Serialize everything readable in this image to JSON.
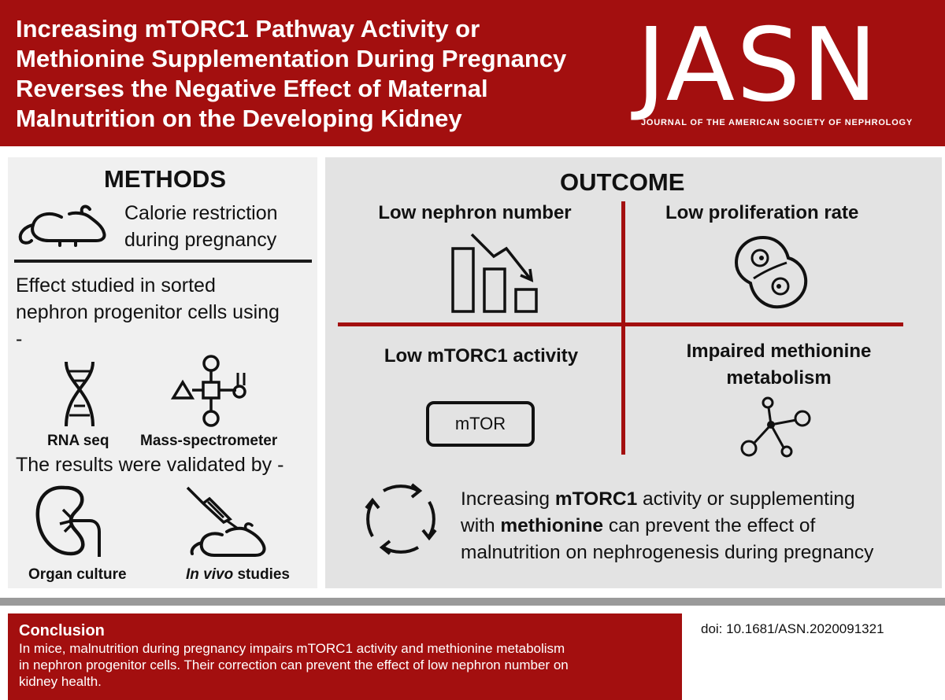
{
  "header": {
    "title_lines": [
      "Increasing mTORC1 Pathway Activity or",
      "Methionine Supplementation During Pregnancy",
      "Reverses the Negative Effect of Maternal",
      "Malnutrition on the Developing Kidney"
    ],
    "logo_text": "JASN",
    "logo_subtitle": "JOURNAL OF THE AMERICAN SOCIETY OF NEPHROLOGY"
  },
  "methods": {
    "heading": "METHODS",
    "calorie_lines": [
      "Calorie restriction",
      "during pregnancy"
    ],
    "effect_lines": [
      "Effect studied in sorted",
      "nephron progenitor cells using",
      "-"
    ],
    "rna_label": "RNA seq",
    "mass_label": "Mass-spectrometer",
    "validated_text": "The results were validated by -",
    "organ_label": "Organ culture",
    "invivo_italic": "In vivo",
    "invivo_rest": " studies",
    "icons": [
      "mouse-icon",
      "dna-icon",
      "molecule-network-icon",
      "kidney-icon",
      "syringe-mouse-icon"
    ]
  },
  "outcome": {
    "heading": "OUTCOME",
    "q1": "Low nephron number",
    "q2": "Low proliferation rate",
    "q3": "Low mTORC1 activity",
    "q3_box": "mTOR",
    "q4_lines": [
      "Impaired methionine",
      "metabolism"
    ],
    "summary": {
      "p1": "Increasing ",
      "b1": "mTORC1",
      "p2": " activity or supplementing",
      "p3": "with ",
      "b2": "methionine",
      "p4": " can prevent the effect of",
      "p5": "malnutrition on nephrogenesis during pregnancy"
    },
    "icons": [
      "bar-chart-decline-icon",
      "dividing-cell-icon",
      "mtor-box-icon",
      "molecule-icon",
      "cycle-arrows-icon"
    ]
  },
  "conclusion": {
    "title": "Conclusion",
    "body_lines": [
      "In mice, malnutrition during pregnancy impairs mTORC1 activity and methionine metabolism",
      "in nephron progenitor cells. Their correction can prevent the effect of low nephron number on",
      "kidney health."
    ]
  },
  "doi": "doi: 10.1681/ASN.2020091321",
  "colors": {
    "brand_red": "#a30f0f",
    "panel_grey": "#e3e3e3",
    "bar_grey": "#9a9a9a"
  }
}
